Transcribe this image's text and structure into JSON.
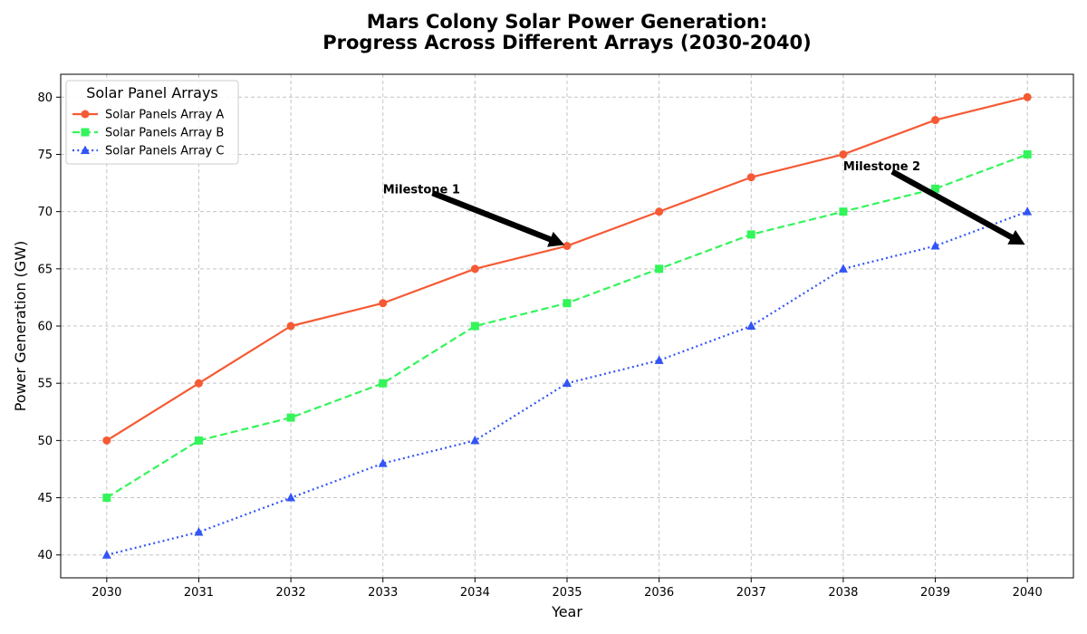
{
  "chart_data": {
    "type": "line",
    "title_lines": [
      "Mars Colony Solar Power Generation:",
      "Progress Across Different Arrays (2030-2040)"
    ],
    "xlabel": "Year",
    "ylabel": "Power Generation (GW)",
    "x": [
      2030,
      2031,
      2032,
      2033,
      2034,
      2035,
      2036,
      2037,
      2038,
      2039,
      2040
    ],
    "xlim": [
      2029.5,
      2040.5
    ],
    "ylim": [
      38,
      82
    ],
    "yticks": [
      40,
      45,
      50,
      55,
      60,
      65,
      70,
      75,
      80
    ],
    "grid": true,
    "legend": {
      "title": "Solar Panel Arrays",
      "placement": "top-left"
    },
    "series": [
      {
        "name": "Solar Panels Array A",
        "values": [
          50,
          55,
          60,
          62,
          65,
          67,
          70,
          73,
          75,
          78,
          80
        ],
        "color": "#f55a34",
        "line_style": "solid",
        "marker": "circle"
      },
      {
        "name": "Solar Panels Array B",
        "values": [
          45,
          50,
          52,
          55,
          60,
          62,
          65,
          68,
          70,
          72,
          75
        ],
        "color": "#33f55a",
        "line_style": "dashed",
        "marker": "square"
      },
      {
        "name": "Solar Panels Array C",
        "values": [
          40,
          42,
          45,
          48,
          50,
          55,
          57,
          60,
          65,
          67,
          70
        ],
        "color": "#3355f5",
        "line_style": "dotted",
        "marker": "triangle"
      }
    ],
    "annotations": [
      {
        "text": "Milestone 1",
        "text_at": [
          2033,
          72
        ],
        "point": [
          2035,
          67
        ]
      },
      {
        "text": "Milestone 2",
        "text_at": [
          2038,
          74
        ],
        "point": [
          2040,
          67
        ]
      }
    ]
  }
}
